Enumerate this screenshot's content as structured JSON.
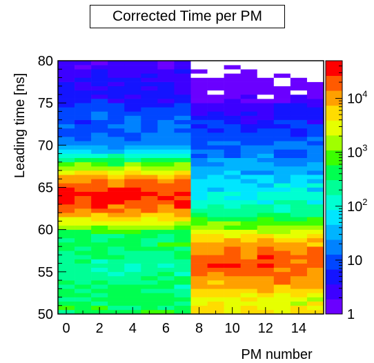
{
  "chart_data": {
    "type": "heatmap",
    "title": "Corrected Time per PM",
    "xlabel": "PM number",
    "ylabel": "Leading time [ns]",
    "xlim": [
      -0.5,
      15.5
    ],
    "ylim": [
      50,
      80
    ],
    "x_ticks": [
      0,
      2,
      4,
      6,
      8,
      10,
      12,
      14
    ],
    "y_ticks": [
      50,
      55,
      60,
      65,
      70,
      75,
      80
    ],
    "colorbar": {
      "scale": "log",
      "range": [
        1,
        50000
      ],
      "tick_labels": [
        {
          "value": 1,
          "base": "1",
          "exp": ""
        },
        {
          "value": 10,
          "base": "10",
          "exp": ""
        },
        {
          "value": 100,
          "base": "10",
          "exp": "2"
        },
        {
          "value": 1000,
          "base": "10",
          "exp": "3"
        },
        {
          "value": 10000,
          "base": "10",
          "exp": "4"
        }
      ]
    },
    "grid": false,
    "series": [
      {
        "pm_range": [
          0,
          7
        ],
        "peak_time_ns": 64,
        "peak_counts": 30000,
        "secondary_peak_time_ns": 58.5,
        "secondary_peak_counts": 300
      },
      {
        "pm_range": [
          8,
          15
        ],
        "peak_time_ns": 56,
        "peak_counts": 20000
      }
    ]
  },
  "colors": {
    "palette": [
      "#6a00ff",
      "#3c00ff",
      "#1414ff",
      "#0046ff",
      "#0082ff",
      "#00b4ff",
      "#00e6ff",
      "#00ffd2",
      "#00ff96",
      "#00ff50",
      "#3cff00",
      "#a0ff00",
      "#e6ff00",
      "#ffdc00",
      "#ffa000",
      "#ff5a00",
      "#ff0000"
    ]
  }
}
